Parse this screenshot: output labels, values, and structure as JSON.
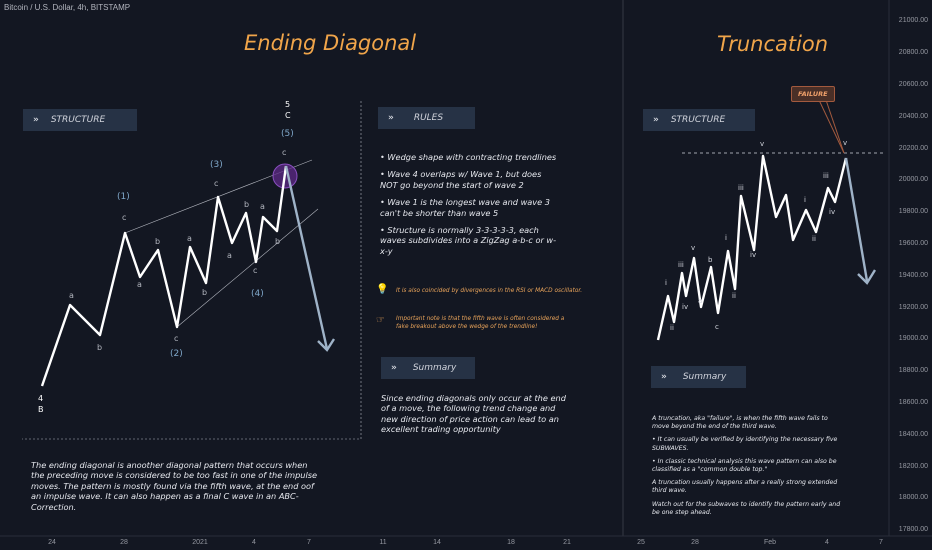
{
  "symbol": "Bitcoin / U.S. Dollar, 4h, BITSTAMP",
  "left": {
    "title": "Ending Diagonal",
    "structure_label": "STRUCTURE",
    "description": "The ending diagonal is anoother diagonal pattern that occurs when the preceding move is considered to be too fast in one of the impulse moves. The pattern is mostly found via the fifth wave, at the end oof an impulse wave. It can also happen as a final C wave in an ABC-Correction.",
    "labels": {
      "w1": "(1)",
      "w2": "(2)",
      "w3": "(3)",
      "w4": "(4)",
      "w5": "(5)",
      "top5": "5",
      "topC": "C",
      "bot4": "4",
      "botB": "B",
      "a": "a",
      "b": "b",
      "c": "c"
    }
  },
  "middle": {
    "rules_label": "RULES",
    "rules": [
      "• Wedge shape with contracting trendlines",
      "• Wave 4 overlaps w/ Wave 1, but does NOT go beyond the start of wave 2",
      "• Wave 1 is the longest wave and wave 3 can't be shorter than wave 5",
      "• Structure is normally 3-3-3-3-3, each waves subdivides into a ZigZag a-b-c or w-x-y"
    ],
    "note1": "It is also coincided by divergences in the RSI or MACD oscillator.",
    "note2": "Important note is that the fifth wave is often considered a fake breakout above the wedge of the trendline!",
    "summary_label": "Summary",
    "summary": "Since ending diagonals only occur at the end of a move, the following trend change and new direction of price action can lead to an excellent trading opportunity"
  },
  "right": {
    "title": "Truncation",
    "structure_label": "STRUCTURE",
    "failure_label": "FAILURE",
    "summary_label": "Summary",
    "summary": [
      "A truncation, aka \"failure\", is when the fifth wave fails to move beyond the end of the third wave.",
      "• It can usually be verified by identifying the necessary five SUBWAVES.",
      "• In classic technical analysis this wave pattern can also be classified as a \"common double top.\"",
      "A truncation usually happens after a really strong extended third wave.",
      "Watch out for the subwaves to identify the pattern early and be one step ahead."
    ],
    "labels": {
      "i": "i",
      "ii": "ii",
      "iii": "iii",
      "iv": "iv",
      "v": "v",
      "a": "a",
      "b": "b",
      "c": "c"
    }
  },
  "price_axis": [
    "21000.00",
    "20800.00",
    "20600.00",
    "20400.00",
    "20200.00",
    "20000.00",
    "19800.00",
    "19600.00",
    "19400.00",
    "19200.00",
    "19000.00",
    "18800.00",
    "18600.00",
    "18400.00",
    "18200.00",
    "18000.00",
    "17800.00"
  ],
  "date_axis": [
    "24",
    "28",
    "2021",
    "4",
    "7",
    "11",
    "14",
    "18",
    "21",
    "25",
    "28",
    "Feb",
    "4",
    "7"
  ],
  "colors": {
    "accent": "#f0a54a",
    "tag_bg": "#263245",
    "wave": "#ffffff",
    "arrow": "#9fb3c8",
    "label_blue": "#7fa7c9"
  }
}
